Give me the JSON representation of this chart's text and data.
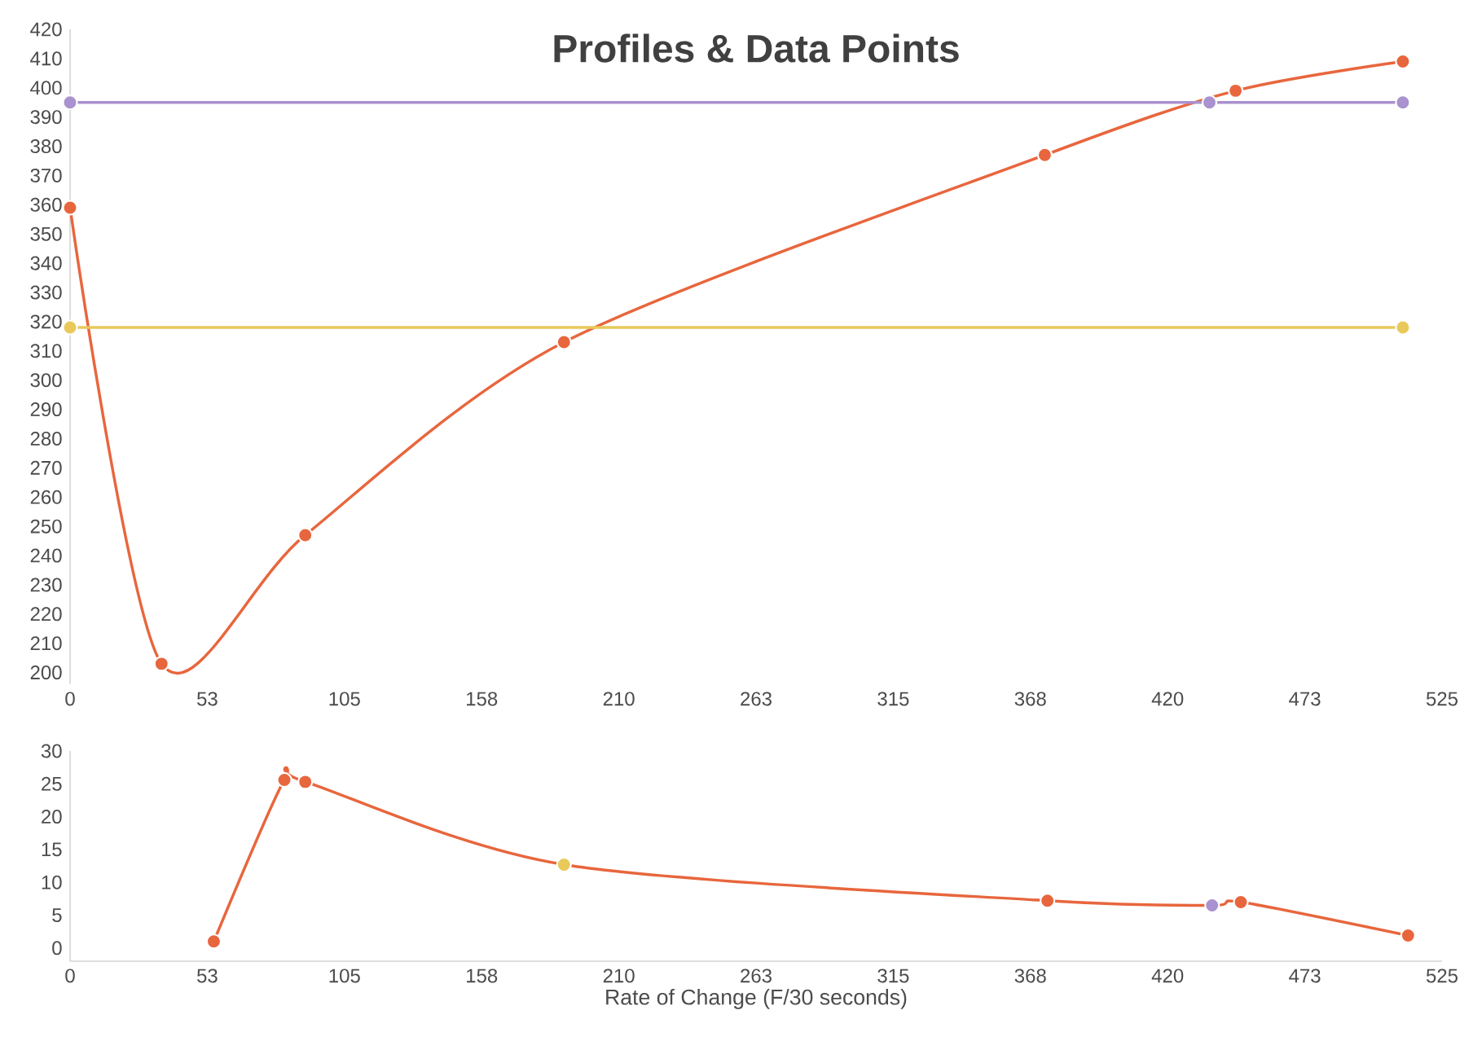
{
  "chart_data": [
    {
      "type": "line",
      "title": "Profiles & Data Points",
      "marker": "circle",
      "series": [
        {
          "color": "#e8663d",
          "x": [
            0,
            35,
            90,
            189,
            373,
            446,
            510
          ],
          "values": [
            359,
            203,
            247,
            313,
            377,
            399,
            409
          ]
        },
        {
          "color": "#a992cf",
          "x": [
            0,
            436,
            510
          ],
          "values": [
            395,
            395,
            395
          ]
        },
        {
          "color": "#e8c95a",
          "x": [
            0,
            510
          ],
          "values": [
            318,
            318
          ]
        }
      ],
      "xlim": [
        0,
        525
      ],
      "ylim": [
        196,
        420
      ],
      "xticks": [
        0,
        {
          "value": 52.5,
          "label": "53"
        },
        105,
        {
          "value": 157.5,
          "label": "158"
        },
        210,
        {
          "value": 262.5,
          "label": "263"
        },
        315,
        {
          "value": 367.5,
          "label": "368"
        },
        420,
        {
          "value": 472.5,
          "label": "473"
        },
        525
      ],
      "yticks": [
        200,
        210,
        220,
        230,
        240,
        250,
        260,
        270,
        280,
        290,
        300,
        310,
        320,
        330,
        340,
        350,
        360,
        370,
        380,
        390,
        400,
        410,
        420
      ]
    },
    {
      "type": "line",
      "xlabel": "Rate of Change (F/30 seconds)",
      "marker": "circle",
      "series": [
        {
          "color": "#e8663d",
          "x": [
            55,
            82,
            90,
            189,
            374,
            437,
            448,
            512
          ],
          "values": [
            1,
            25.6,
            25.3,
            12.7,
            7.2,
            6.5,
            7,
            1.9
          ],
          "colors": [
            "#e8663d",
            "#e8663d",
            "#e8663d",
            "#e8c95a",
            "#e8663d",
            "#a992cf",
            "#e8663d",
            "#e8663d"
          ]
        }
      ],
      "xlim": [
        0,
        525
      ],
      "ylim": [
        -2,
        30
      ],
      "xticks": [
        0,
        {
          "value": 52.5,
          "label": "53"
        },
        105,
        {
          "value": 157.5,
          "label": "158"
        },
        210,
        {
          "value": 262.5,
          "label": "263"
        },
        315,
        {
          "value": 367.5,
          "label": "368"
        },
        420,
        {
          "value": 472.5,
          "label": "473"
        },
        525
      ],
      "yticks": [
        0,
        5,
        10,
        15,
        20,
        25,
        30
      ]
    }
  ]
}
